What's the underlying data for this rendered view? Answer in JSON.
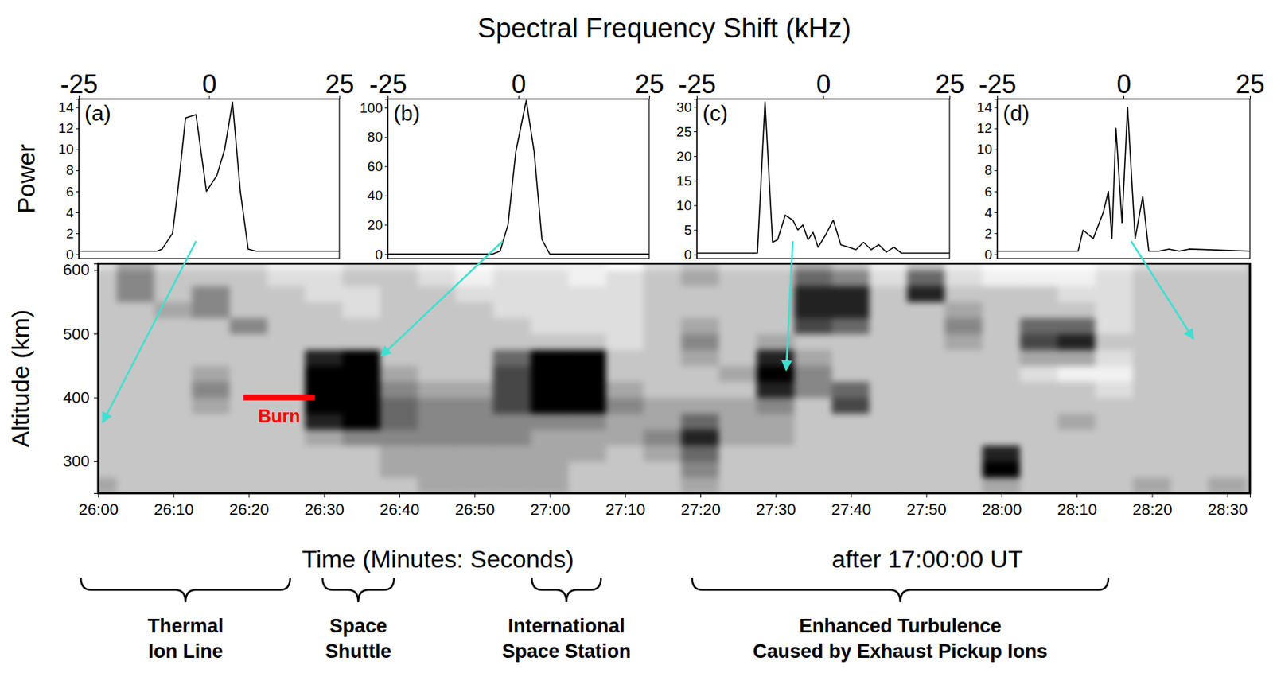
{
  "figure": {
    "title": "Spectral Frequency Shift (kHz)",
    "ylabel": "Power"
  },
  "chart_data": [
    {
      "type": "line",
      "panel": "(a)",
      "color": "#000000",
      "x": [
        -25,
        -10,
        -9,
        -7,
        -6,
        -4.5,
        -2.5,
        -0.5,
        1.5,
        3,
        4.5,
        6,
        7.5,
        9,
        25
      ],
      "values": [
        0.3,
        0.3,
        0.5,
        2,
        6,
        13,
        13.3,
        6,
        7.5,
        10,
        14.5,
        6,
        0.5,
        0.3,
        0.3
      ],
      "xlim": [
        -25,
        25
      ],
      "xticks": [
        -25,
        0,
        25
      ],
      "ylim": [
        -0.4,
        14.8
      ],
      "yticks": [
        0,
        2,
        4,
        6,
        8,
        10,
        12,
        14
      ],
      "arrow_to": {
        "x": 1560.6,
        "y": 361
      }
    },
    {
      "type": "line",
      "panel": "(b)",
      "color": "#000000",
      "x": [
        -25,
        -5,
        -3.5,
        -2,
        -0.5,
        1.5,
        3,
        4.5,
        6,
        25
      ],
      "values": [
        0,
        0,
        2,
        20,
        70,
        105,
        70,
        10,
        0,
        0
      ],
      "xlim": [
        -25,
        25
      ],
      "xticks": [
        -25,
        0,
        25
      ],
      "ylim": [
        -3,
        106
      ],
      "yticks": [
        0,
        20,
        40,
        60,
        80,
        100
      ],
      "arrow_to": {
        "x": 1597.6,
        "y": 465
      }
    },
    {
      "type": "line",
      "panel": "(c)",
      "color": "#000000",
      "x": [
        -25,
        -13,
        -11.5,
        -10,
        -9,
        -7.5,
        -6,
        -5,
        -4,
        -3,
        -2,
        -1,
        0.5,
        2,
        3.5,
        5,
        6.5,
        8,
        9.5,
        11,
        12.5,
        14,
        15.5,
        25
      ],
      "values": [
        0.3,
        0.3,
        31,
        2.5,
        3,
        8,
        7,
        5,
        6,
        3,
        4.5,
        1.5,
        4,
        7,
        2,
        1.5,
        1,
        2.5,
        1,
        2,
        0.5,
        1.5,
        0.3,
        0.3
      ],
      "xlim": [
        -25,
        25
      ],
      "xticks": [
        -25,
        0,
        25
      ],
      "ylim": [
        -0.8,
        31.6
      ],
      "yticks": [
        0,
        5,
        10,
        15,
        20,
        25,
        30
      ],
      "arrow_to": {
        "x": 1651.4,
        "y": 443
      }
    },
    {
      "type": "line",
      "panel": "(d)",
      "color": "#000000",
      "x": [
        -25,
        -9,
        -8,
        -6,
        -4,
        -3,
        -2.3,
        -1.5,
        -0.3,
        0.8,
        2.3,
        3.8,
        5,
        7,
        9,
        11,
        13,
        25
      ],
      "values": [
        0.3,
        0.3,
        2.3,
        1.5,
        4,
        6,
        1.5,
        12,
        3,
        14,
        1.5,
        5.5,
        0.3,
        0.3,
        0.5,
        0.3,
        0.5,
        0.3
      ],
      "xlim": [
        -25,
        25
      ],
      "xticks": [
        -25,
        0,
        25
      ],
      "ylim": [
        -0.4,
        14.8
      ],
      "yticks": [
        0,
        2,
        4,
        6,
        8,
        10,
        12,
        14
      ],
      "arrow_to": {
        "x": 1705.5,
        "y": 492
      }
    },
    {
      "type": "heatmap",
      "xlabel": "Time (Minutes: Seconds)",
      "xlabel_note": "after 17:00:00 UT",
      "ylabel": "Altitude (km)",
      "x": [
        1560,
        1565,
        1570,
        1575,
        1580,
        1585,
        1590,
        1595,
        1600,
        1605,
        1610,
        1615,
        1620,
        1625,
        1630,
        1635,
        1640,
        1645,
        1650,
        1655,
        1660,
        1665,
        1670,
        1675,
        1680,
        1685,
        1690,
        1695,
        1700,
        1705,
        1710
      ],
      "y": [
        262.5,
        287.5,
        312.5,
        337.5,
        362.5,
        387.5,
        412.5,
        437.5,
        462.5,
        487.5,
        512.5,
        537.5,
        562.5,
        587.5,
        612.5
      ],
      "values": [
        [
          4,
          3,
          3,
          3,
          3,
          3,
          3,
          3,
          3,
          4,
          4,
          4,
          4,
          3,
          3,
          3,
          4,
          3,
          3,
          3,
          3,
          3,
          3,
          3,
          4,
          3,
          3,
          3,
          4,
          3,
          4
        ],
        [
          3,
          3,
          3,
          3,
          3,
          3,
          3,
          3,
          4,
          4,
          4,
          4,
          4,
          3,
          3,
          3,
          5,
          3,
          3,
          3,
          3,
          3,
          3,
          3,
          9,
          3,
          3,
          3,
          3,
          3,
          3
        ],
        [
          3,
          3,
          3,
          3,
          3,
          3,
          3,
          3,
          4,
          4,
          4,
          4,
          4,
          4,
          3,
          4,
          6,
          3,
          3,
          3,
          3,
          3,
          3,
          3,
          8,
          3,
          3,
          3,
          3,
          3,
          3
        ],
        [
          3,
          3,
          3,
          3,
          3,
          3,
          4,
          5,
          5,
          5,
          5,
          5,
          4,
          4,
          4,
          5,
          8,
          4,
          4,
          3,
          3,
          3,
          3,
          3,
          3,
          3,
          3,
          3,
          3,
          3,
          3
        ],
        [
          3,
          3,
          3,
          3,
          3,
          3,
          8,
          9,
          6,
          5,
          5,
          5,
          5,
          5,
          4,
          4,
          6,
          4,
          4,
          3,
          3,
          3,
          3,
          3,
          3,
          3,
          4,
          3,
          3,
          3,
          3
        ],
        [
          3,
          3,
          3,
          4,
          3,
          3,
          9,
          9,
          6,
          5,
          5,
          7,
          9,
          9,
          5,
          4,
          4,
          4,
          5,
          3,
          7,
          3,
          3,
          3,
          3,
          3,
          3,
          3,
          3,
          3,
          3
        ],
        [
          3,
          3,
          3,
          5,
          3,
          3,
          9,
          9,
          5,
          4,
          4,
          7,
          9,
          9,
          4,
          3,
          3,
          3,
          8,
          5,
          6,
          3,
          3,
          3,
          3,
          3,
          3,
          2,
          3,
          3,
          3
        ],
        [
          3,
          3,
          3,
          4,
          3,
          3,
          9,
          9,
          4,
          3,
          3,
          7,
          9,
          9,
          3,
          3,
          3,
          4,
          9,
          5,
          3,
          3,
          3,
          3,
          3,
          2,
          1,
          1,
          3,
          3,
          3
        ],
        [
          3,
          3,
          3,
          3,
          3,
          3,
          8,
          9,
          3,
          3,
          3,
          6,
          9,
          9,
          3,
          3,
          4,
          3,
          8,
          4,
          3,
          3,
          3,
          3,
          3,
          4,
          4,
          2,
          3,
          3,
          3
        ],
        [
          3,
          3,
          3,
          3,
          3,
          3,
          3,
          3,
          3,
          3,
          3,
          3,
          3,
          3,
          2,
          3,
          5,
          3,
          4,
          3,
          3,
          3,
          3,
          4,
          3,
          7,
          8,
          3,
          3,
          3,
          3
        ],
        [
          3,
          3,
          3,
          3,
          5,
          3,
          3,
          3,
          3,
          3,
          3,
          3,
          2,
          2,
          2,
          3,
          4,
          3,
          3,
          7,
          6,
          3,
          3,
          5,
          3,
          6,
          6,
          2,
          3,
          3,
          3
        ],
        [
          3,
          3,
          4,
          5,
          3,
          3,
          3,
          2,
          3,
          3,
          3,
          2,
          2,
          2,
          2,
          3,
          3,
          3,
          3,
          8,
          8,
          3,
          3,
          4,
          3,
          3,
          3,
          2,
          3,
          3,
          3
        ],
        [
          3,
          5,
          3,
          5,
          3,
          3,
          2,
          2,
          3,
          3,
          2,
          2,
          2,
          2,
          2,
          3,
          3,
          3,
          3,
          8,
          8,
          3,
          8,
          3,
          3,
          3,
          2,
          2,
          3,
          3,
          3
        ],
        [
          3,
          5,
          3,
          3,
          3,
          2,
          2,
          3,
          3,
          2,
          1,
          2,
          2,
          1,
          2,
          3,
          4,
          3,
          3,
          6,
          5,
          2,
          6,
          2,
          1,
          1,
          1,
          2,
          3,
          3,
          3
        ],
        [
          2,
          4,
          2,
          2,
          2,
          1,
          1,
          2,
          2,
          1,
          0,
          1,
          1,
          1,
          0,
          2,
          3,
          2,
          2,
          4,
          3,
          1,
          3,
          1,
          0,
          0,
          0,
          1,
          2,
          2,
          2
        ]
      ],
      "zlim": [
        0,
        9
      ],
      "xlim": [
        1560,
        1713
      ],
      "xticks": [
        {
          "value": 1560,
          "label": "26:00"
        },
        {
          "value": 1570,
          "label": "26:10"
        },
        {
          "value": 1580,
          "label": "26:20"
        },
        {
          "value": 1590,
          "label": "26:30"
        },
        {
          "value": 1600,
          "label": "26:40"
        },
        {
          "value": 1610,
          "label": "26:50"
        },
        {
          "value": 1620,
          "label": "27:00"
        },
        {
          "value": 1630,
          "label": "27:10"
        },
        {
          "value": 1640,
          "label": "27:20"
        },
        {
          "value": 1650,
          "label": "27:30"
        },
        {
          "value": 1660,
          "label": "27:40"
        },
        {
          "value": 1670,
          "label": "27:50"
        },
        {
          "value": 1680,
          "label": "28:00"
        },
        {
          "value": 1690,
          "label": "28:10"
        },
        {
          "value": 1700,
          "label": "28:20"
        },
        {
          "value": 1710,
          "label": "28:30"
        }
      ],
      "ylim": [
        250,
        610
      ],
      "yticks": [
        300,
        400,
        500,
        600
      ],
      "annotations": [
        {
          "text": "Burn",
          "x0": 1579.3,
          "x1": 1588.8,
          "y": 400,
          "color": "#ff0000"
        }
      ],
      "brackets": [
        {
          "lines": [
            "Thermal",
            "Ion Line"
          ],
          "x0": 1557.7,
          "x1": 1585.5
        },
        {
          "lines": [
            "Space",
            "Shuttle"
          ],
          "x0": 1589.8,
          "x1": 1599.3
        },
        {
          "lines": [
            "International",
            "Space Station"
          ],
          "x0": 1617.6,
          "x1": 1626.8
        },
        {
          "lines": [
            "Enhanced Turbulence",
            "Caused by Exhaust Pickup Ions"
          ],
          "x0": 1638.9,
          "x1": 1694.2
        }
      ]
    }
  ]
}
